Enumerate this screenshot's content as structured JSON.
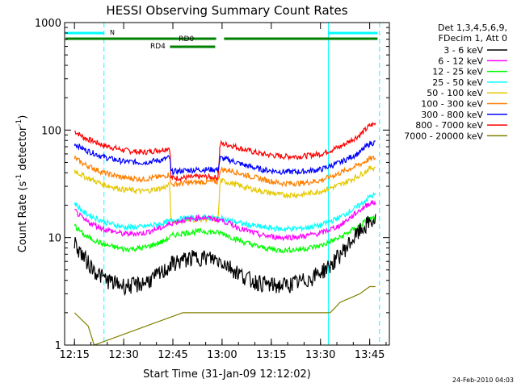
{
  "chart_data": {
    "type": "line",
    "title": "HESSI Observing Summary Count Rates",
    "xlabel": "Start Time (31-Jan-09 12:12:02)",
    "ylabel_main": "Count Rate (s",
    "ylabel_sup1": "-1",
    "ylabel_mid": " detector",
    "ylabel_sup2": "-1",
    "ylabel_end": ")",
    "yscale": "log",
    "xlim": [
      12.2,
      13.85
    ],
    "ylim": [
      1,
      1000
    ],
    "x_ticks": [
      {
        "x": 12.25,
        "label": "12:15"
      },
      {
        "x": 12.5,
        "label": "12:30"
      },
      {
        "x": 12.75,
        "label": "12:45"
      },
      {
        "x": 13.0,
        "label": "13:00"
      },
      {
        "x": 13.25,
        "label": "13:15"
      },
      {
        "x": 13.5,
        "label": "13:30"
      },
      {
        "x": 13.75,
        "label": "13:45"
      }
    ],
    "y_ticks": [
      {
        "y": 1,
        "label": "1"
      },
      {
        "y": 10,
        "label": "10"
      },
      {
        "y": 100,
        "label": "100"
      },
      {
        "y": 1000,
        "label": "1000"
      }
    ],
    "legend_header": [
      "Det 1,3,4,5,6,9,",
      "FDecim 1, Att 0"
    ],
    "legend_position": "right",
    "grid": false,
    "series": [
      {
        "name": "3 - 6 keV",
        "color": "#000000",
        "x": [
          12.25,
          12.3,
          12.35,
          12.4,
          12.45,
          12.5,
          12.55,
          12.6,
          12.65,
          12.7,
          12.75,
          12.78,
          12.8,
          12.85,
          12.9,
          12.95,
          13.0,
          13.05,
          13.1,
          13.15,
          13.2,
          13.25,
          13.3,
          13.35,
          13.4,
          13.45,
          13.5,
          13.55,
          13.6,
          13.65,
          13.7,
          13.75,
          13.78
        ],
        "y": [
          9,
          6.5,
          5,
          4.2,
          3.8,
          3.6,
          3.6,
          3.8,
          4.2,
          4.8,
          5.8,
          6,
          6.2,
          6.5,
          6.6,
          6.4,
          6,
          5.2,
          4.5,
          4,
          3.8,
          3.6,
          3.6,
          3.7,
          3.9,
          4.2,
          4.8,
          5.5,
          7,
          9,
          11.5,
          14,
          14.5
        ]
      },
      {
        "name": "6 - 12 keV",
        "color": "#ff00ff",
        "x": [
          12.25,
          12.3,
          12.4,
          12.5,
          12.6,
          12.7,
          12.75,
          12.8,
          12.9,
          13.0,
          13.1,
          13.2,
          13.3,
          13.4,
          13.5,
          13.6,
          13.7,
          13.75,
          13.78
        ],
        "y": [
          18,
          14.5,
          12,
          10.8,
          11,
          12.5,
          13.8,
          14.5,
          15.5,
          14.5,
          12,
          10.5,
          10,
          10.2,
          11,
          13,
          18,
          21,
          21
        ]
      },
      {
        "name": "12 - 25 keV",
        "color": "#00ff00",
        "x": [
          12.25,
          12.3,
          12.4,
          12.5,
          12.6,
          12.7,
          12.75,
          12.8,
          12.9,
          13.0,
          13.1,
          13.2,
          13.3,
          13.4,
          13.5,
          13.6,
          13.7,
          13.75,
          13.78
        ],
        "y": [
          13,
          10.5,
          8.6,
          7.8,
          8,
          9.2,
          10.5,
          11,
          11.5,
          11,
          9.2,
          8.1,
          7.6,
          7.8,
          8.4,
          10,
          13,
          15,
          15
        ]
      },
      {
        "name": "25 - 50 keV",
        "color": "#00ffff",
        "x": [
          12.25,
          12.3,
          12.4,
          12.5,
          12.6,
          12.7,
          12.75,
          12.8,
          12.9,
          13.0,
          13.1,
          13.2,
          13.3,
          13.4,
          13.5,
          13.6,
          13.7,
          13.75,
          13.78
        ],
        "y": [
          21,
          17,
          14,
          12.5,
          12.6,
          13.6,
          14.5,
          15,
          15.5,
          15,
          13.5,
          12.5,
          12,
          12.2,
          13,
          15.5,
          20,
          24,
          25
        ]
      },
      {
        "name": "50 - 100 keV",
        "color": "#e6c800",
        "x": [
          12.25,
          12.3,
          12.4,
          12.5,
          12.6,
          12.7,
          12.735,
          12.74,
          12.8,
          12.9,
          12.98,
          12.99,
          13.05,
          13.1,
          13.2,
          13.3,
          13.4,
          13.5,
          13.6,
          13.7,
          13.75,
          13.78
        ],
        "y": [
          42,
          37,
          31,
          28,
          27,
          29,
          31,
          14,
          14.5,
          15,
          14.5,
          34,
          32,
          30,
          27,
          25,
          25,
          27,
          31,
          38,
          44,
          45
        ]
      },
      {
        "name": "100 - 300 keV",
        "color": "#ff8000",
        "x": [
          12.25,
          12.3,
          12.4,
          12.5,
          12.6,
          12.7,
          12.735,
          12.74,
          12.8,
          12.9,
          12.98,
          12.99,
          13.05,
          13.1,
          13.2,
          13.3,
          13.4,
          13.5,
          13.6,
          13.7,
          13.75,
          13.78
        ],
        "y": [
          55,
          48,
          40,
          36,
          35,
          37,
          39,
          31,
          32,
          33,
          33,
          43,
          42,
          39,
          35,
          32,
          32,
          34,
          40,
          48,
          54,
          55
        ]
      },
      {
        "name": "300 - 800 keV",
        "color": "#0000ff",
        "x": [
          12.25,
          12.3,
          12.4,
          12.5,
          12.6,
          12.7,
          12.735,
          12.74,
          12.8,
          12.9,
          12.98,
          12.99,
          13.05,
          13.1,
          13.2,
          13.3,
          13.4,
          13.5,
          13.6,
          13.7,
          13.75,
          13.78
        ],
        "y": [
          75,
          66,
          56,
          51,
          50,
          53,
          56,
          41,
          42,
          43,
          43,
          55,
          52,
          48,
          43,
          41,
          41,
          43,
          50,
          62,
          75,
          77
        ]
      },
      {
        "name": "800 - 7000 keV",
        "color": "#ff0000",
        "x": [
          12.25,
          12.3,
          12.4,
          12.5,
          12.6,
          12.7,
          12.735,
          12.74,
          12.8,
          12.9,
          12.98,
          12.99,
          13.05,
          13.1,
          13.2,
          13.3,
          13.4,
          13.5,
          13.6,
          13.7,
          13.75,
          13.78
        ],
        "y": [
          98,
          85,
          72,
          65,
          62,
          66,
          69,
          36,
          36,
          37,
          36,
          75,
          72,
          67,
          60,
          57,
          57,
          60,
          70,
          90,
          110,
          115
        ]
      },
      {
        "name": "7000 - 20000 keV",
        "color": "#808000",
        "x": [
          12.25,
          12.32,
          12.35,
          12.8,
          12.92,
          13.55,
          13.6,
          13.7,
          13.75,
          13.78
        ],
        "y": [
          2,
          1.5,
          1,
          2,
          2,
          2,
          2.5,
          3,
          3.5,
          3.5
        ]
      }
    ],
    "annotations": {
      "attenuator_label": "N",
      "decimation_labels": [
        "RD0",
        "RD4"
      ]
    },
    "footer_date": "24-Feb-2010 04:03"
  }
}
